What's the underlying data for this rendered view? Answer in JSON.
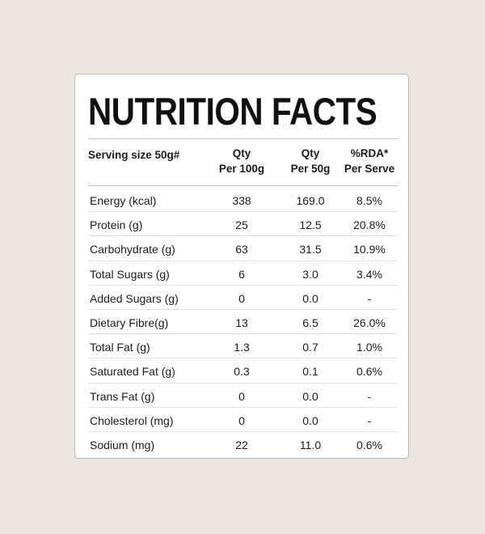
{
  "title": "NUTRITION FACTS",
  "header": {
    "serving": "Serving size 50g#",
    "col1": [
      "Qty",
      "Per 100g"
    ],
    "col2": [
      "Qty",
      "Per 50g"
    ],
    "col3": [
      "%RDA*",
      "Per Serve"
    ]
  },
  "rows": [
    {
      "name": "Energy (kcal)",
      "per100": "338",
      "per50": "169.0",
      "rda": "8.5%"
    },
    {
      "name": "Protein (g)",
      "per100": "25",
      "per50": "12.5",
      "rda": "20.8%"
    },
    {
      "name": "Carbohydrate (g)",
      "per100": "63",
      "per50": "31.5",
      "rda": "10.9%"
    },
    {
      "name": "Total Sugars (g)",
      "per100": "6",
      "per50": "3.0",
      "rda": "3.4%"
    },
    {
      "name": "Added Sugars (g)",
      "per100": "0",
      "per50": "0.0",
      "rda": "-"
    },
    {
      "name": "Dietary Fibre(g)",
      "per100": "13",
      "per50": "6.5",
      "rda": "26.0%"
    },
    {
      "name": "Total Fat (g)",
      "per100": "1.3",
      "per50": "0.7",
      "rda": "1.0%"
    },
    {
      "name": "Saturated Fat (g)",
      "per100": "0.3",
      "per50": "0.1",
      "rda": "0.6%"
    },
    {
      "name": "Trans Fat (g)",
      "per100": "0",
      "per50": "0.0",
      "rda": "-"
    },
    {
      "name": "Cholesterol (mg)",
      "per100": "0",
      "per50": "0.0",
      "rda": "-"
    },
    {
      "name": "Sodium (mg)",
      "per100": "22",
      "per50": "11.0",
      "rda": "0.6%"
    }
  ],
  "colors": {
    "background": "#ede5e0",
    "card": "#ffffff",
    "text": "#111111"
  }
}
